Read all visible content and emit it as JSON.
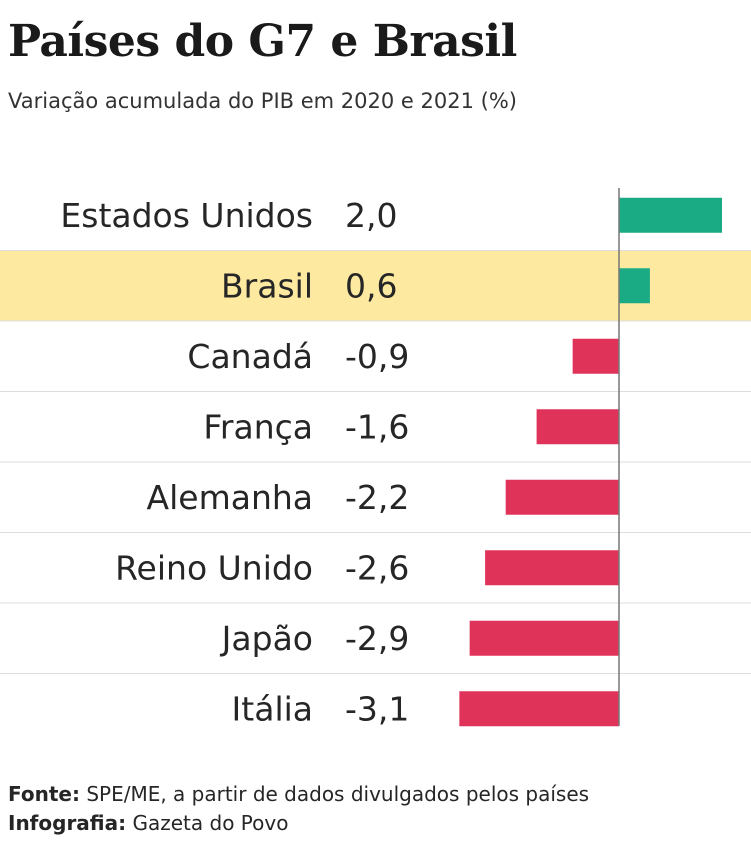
{
  "title": "Países do G7 e Brasil",
  "subtitle": "Variação acumulada do PIB em 2020 e 2021 (%)",
  "footer": {
    "source_label": "Fonte:",
    "source_text": "SPE/ME, a partir de dados divulgados pelos países",
    "credit_label": "Infografia:",
    "credit_text": "Gazeta do Povo"
  },
  "colors": {
    "positive": "#1aaa84",
    "negative": "#e0335a",
    "highlight": "#fde9a0",
    "divider": "#dddddd",
    "axis": "#777777"
  },
  "chart_data": {
    "type": "bar",
    "orientation": "horizontal",
    "categories": [
      "Estados Unidos",
      "Brasil",
      "Canadá",
      "França",
      "Alemanha",
      "Reino Unido",
      "Japão",
      "Itália"
    ],
    "values": [
      2.0,
      0.6,
      -0.9,
      -1.6,
      -2.2,
      -2.6,
      -2.9,
      -3.1
    ],
    "value_labels": [
      "2,0",
      "0,6",
      "-0,9",
      "-1,6",
      "-2,2",
      "-2,6",
      "-2,9",
      "-3,1"
    ],
    "highlighted": "Brasil",
    "xlim": [
      -3.1,
      2.0
    ],
    "grid": false
  }
}
